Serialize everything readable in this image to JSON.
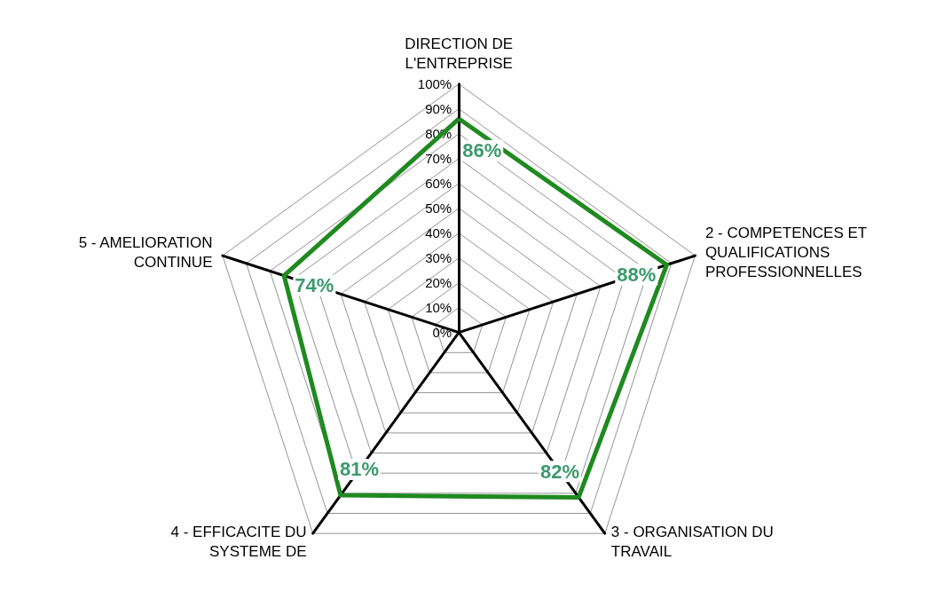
{
  "chart_data": {
    "type": "radar",
    "categories": [
      "DIRECTION DE\nL'ENTREPRISE",
      "2 - COMPETENCES ET\nQUALIFICATIONS\nPROFESSIONNELLES",
      "3 - ORGANISATION DU\nTRAVAIL",
      "4 - EFFICACITE DU\nSYSTEME DE",
      "5 - AMELIORATION\nCONTINUE"
    ],
    "series": [
      {
        "color": "#1f8a1f",
        "values": [
          86,
          88,
          82,
          81,
          74
        ],
        "value_labels": [
          "86%",
          "88%",
          "82%",
          "81%",
          "74%"
        ]
      }
    ],
    "ylim": [
      0,
      100
    ],
    "yticks": [
      {
        "value": 0,
        "label": "0%"
      },
      {
        "value": 10,
        "label": "10%"
      },
      {
        "value": 20,
        "label": "20%"
      },
      {
        "value": 30,
        "label": "30%"
      },
      {
        "value": 40,
        "label": "40%"
      },
      {
        "value": 50,
        "label": "50%"
      },
      {
        "value": 60,
        "label": "60%"
      },
      {
        "value": 70,
        "label": "70%"
      },
      {
        "value": 80,
        "label": "80%"
      },
      {
        "value": 90,
        "label": "90%"
      },
      {
        "value": 100,
        "label": "100%"
      }
    ],
    "grid": true,
    "marker": "none"
  }
}
